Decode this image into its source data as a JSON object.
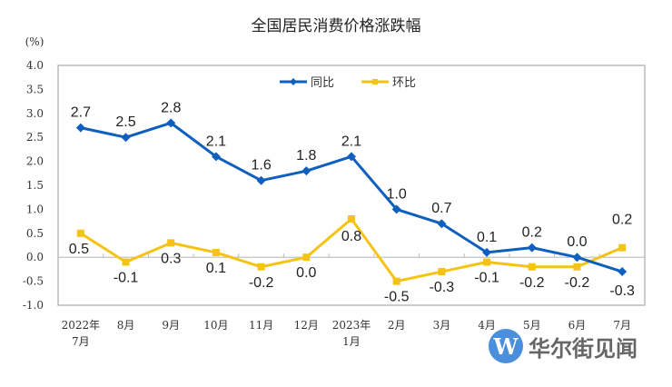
{
  "chart_data": {
    "type": "line",
    "title": "全国居民消费价格涨跌幅",
    "ylabel": "(%)",
    "xlabel": "",
    "ylim": [
      -1.0,
      4.0
    ],
    "yticks": [
      "4.0",
      "3.5",
      "3.0",
      "2.5",
      "2.0",
      "1.5",
      "1.0",
      "0.5",
      "0.0",
      "-0.5",
      "-1.0"
    ],
    "categories": [
      [
        "2022年",
        "7月"
      ],
      [
        "8月"
      ],
      [
        "9月"
      ],
      [
        "10月"
      ],
      [
        "11月"
      ],
      [
        "12月"
      ],
      [
        "2023年",
        "1月"
      ],
      [
        "2月"
      ],
      [
        "3月"
      ],
      [
        "4月"
      ],
      [
        "5月"
      ],
      [
        "6月"
      ],
      [
        "7月"
      ]
    ],
    "legend_position": "top-center",
    "series": [
      {
        "name": "同比",
        "color": "#0f5fbf",
        "marker": "diamond",
        "values": [
          2.7,
          2.5,
          2.8,
          2.1,
          1.6,
          1.8,
          2.1,
          1.0,
          0.7,
          0.1,
          0.2,
          0.0,
          -0.3
        ],
        "labels": [
          "2.7",
          "2.5",
          "2.8",
          "2.1",
          "1.6",
          "1.8",
          "2.1",
          "1.0",
          "0.7",
          "0.1",
          "0.2",
          "0.0",
          "-0.3"
        ]
      },
      {
        "name": "环比",
        "color": "#f5c315",
        "marker": "square",
        "values": [
          0.5,
          -0.1,
          0.3,
          0.1,
          -0.2,
          0.0,
          0.8,
          -0.5,
          -0.3,
          -0.1,
          -0.2,
          -0.2,
          0.2
        ],
        "labels": [
          "0.5",
          "-0.1",
          "0.3",
          "0.1",
          "-0.2",
          "0.0",
          "0.8",
          "-0.5",
          "-0.3",
          "-0.1",
          "-0.2",
          "-0.2",
          "0.2"
        ]
      }
    ]
  },
  "watermark": {
    "logo": "W",
    "text": "华尔街见闻"
  }
}
